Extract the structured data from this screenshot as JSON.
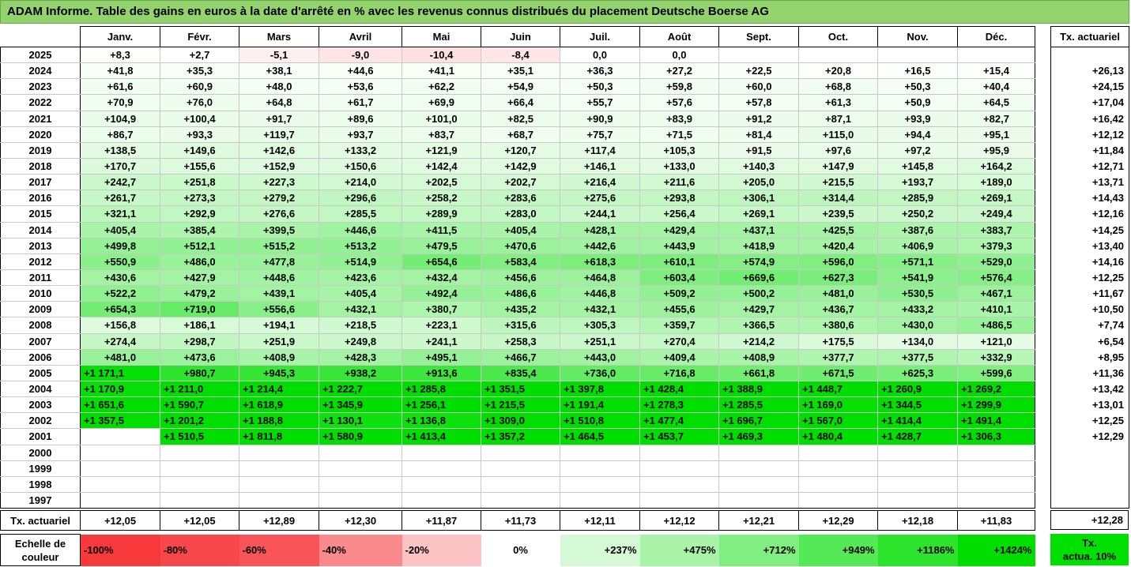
{
  "title": "ADAM Informe. Table des gains en euros à la date d'arrêté en % avec les revenus connus distribués du placement Deutsche Boerse AG",
  "months": [
    "Janv.",
    "Févr.",
    "Mars",
    "Avril",
    "Mai",
    "Juin",
    "Juil.",
    "Août",
    "Sept.",
    "Oct.",
    "Nov.",
    "Déc."
  ],
  "tx_header": "Tx. actuariel",
  "rows": [
    {
      "year": "2025",
      "values": [
        "+8,3",
        "+2,7",
        "-5,1",
        "-9,0",
        "-10,4",
        "-8,4",
        "0,0",
        "0,0",
        "",
        "",
        "",
        ""
      ],
      "tx": ""
    },
    {
      "year": "2024",
      "values": [
        "+41,8",
        "+35,3",
        "+38,1",
        "+44,6",
        "+41,1",
        "+35,1",
        "+36,3",
        "+27,2",
        "+22,5",
        "+20,8",
        "+16,5",
        "+15,4"
      ],
      "tx": "+26,13"
    },
    {
      "year": "2023",
      "values": [
        "+61,6",
        "+60,9",
        "+48,0",
        "+53,6",
        "+62,2",
        "+54,9",
        "+50,3",
        "+59,8",
        "+60,0",
        "+68,8",
        "+50,3",
        "+40,4"
      ],
      "tx": "+24,15"
    },
    {
      "year": "2022",
      "values": [
        "+70,9",
        "+76,0",
        "+64,8",
        "+61,7",
        "+69,9",
        "+66,4",
        "+55,7",
        "+57,6",
        "+57,8",
        "+61,3",
        "+50,9",
        "+64,5"
      ],
      "tx": "+17,04"
    },
    {
      "year": "2021",
      "values": [
        "+104,9",
        "+100,4",
        "+91,7",
        "+89,6",
        "+101,0",
        "+82,5",
        "+90,9",
        "+83,9",
        "+91,2",
        "+87,1",
        "+93,9",
        "+82,7"
      ],
      "tx": "+16,42"
    },
    {
      "year": "2020",
      "values": [
        "+86,7",
        "+93,3",
        "+119,7",
        "+93,7",
        "+83,7",
        "+68,7",
        "+75,7",
        "+71,5",
        "+81,4",
        "+115,0",
        "+94,4",
        "+95,1"
      ],
      "tx": "+12,12"
    },
    {
      "year": "2019",
      "values": [
        "+138,5",
        "+149,6",
        "+142,6",
        "+133,2",
        "+121,9",
        "+120,7",
        "+117,4",
        "+105,3",
        "+91,5",
        "+97,6",
        "+97,2",
        "+95,9"
      ],
      "tx": "+11,84"
    },
    {
      "year": "2018",
      "values": [
        "+170,7",
        "+155,6",
        "+152,9",
        "+150,6",
        "+142,4",
        "+142,9",
        "+146,1",
        "+133,0",
        "+140,3",
        "+147,9",
        "+145,8",
        "+164,2"
      ],
      "tx": "+12,71"
    },
    {
      "year": "2017",
      "values": [
        "+242,7",
        "+251,8",
        "+227,3",
        "+214,0",
        "+202,5",
        "+202,7",
        "+216,4",
        "+211,6",
        "+205,0",
        "+215,5",
        "+193,7",
        "+189,0"
      ],
      "tx": "+13,71"
    },
    {
      "year": "2016",
      "values": [
        "+261,7",
        "+273,3",
        "+279,2",
        "+296,6",
        "+258,2",
        "+283,6",
        "+275,6",
        "+293,8",
        "+306,1",
        "+314,4",
        "+285,9",
        "+269,1"
      ],
      "tx": "+14,43"
    },
    {
      "year": "2015",
      "values": [
        "+321,1",
        "+292,9",
        "+276,6",
        "+285,5",
        "+289,9",
        "+283,0",
        "+244,1",
        "+256,4",
        "+269,1",
        "+239,5",
        "+250,2",
        "+249,4"
      ],
      "tx": "+12,16"
    },
    {
      "year": "2014",
      "values": [
        "+405,4",
        "+385,4",
        "+399,5",
        "+446,6",
        "+411,5",
        "+405,4",
        "+428,1",
        "+429,4",
        "+437,1",
        "+425,5",
        "+387,6",
        "+383,7"
      ],
      "tx": "+14,25"
    },
    {
      "year": "2013",
      "values": [
        "+499,8",
        "+512,1",
        "+515,2",
        "+513,2",
        "+479,5",
        "+470,6",
        "+442,6",
        "+443,9",
        "+418,9",
        "+420,4",
        "+406,9",
        "+379,3"
      ],
      "tx": "+13,40"
    },
    {
      "year": "2012",
      "values": [
        "+550,9",
        "+486,0",
        "+477,8",
        "+514,9",
        "+654,6",
        "+583,4",
        "+618,3",
        "+610,1",
        "+574,9",
        "+596,0",
        "+571,1",
        "+529,0"
      ],
      "tx": "+14,16"
    },
    {
      "year": "2011",
      "values": [
        "+430,6",
        "+427,9",
        "+448,6",
        "+423,6",
        "+432,4",
        "+456,6",
        "+464,8",
        "+603,4",
        "+669,6",
        "+627,3",
        "+541,9",
        "+576,4"
      ],
      "tx": "+12,25"
    },
    {
      "year": "2010",
      "values": [
        "+522,2",
        "+479,2",
        "+439,1",
        "+405,4",
        "+492,4",
        "+486,6",
        "+446,8",
        "+509,2",
        "+500,2",
        "+481,0",
        "+530,5",
        "+467,1"
      ],
      "tx": "+11,67"
    },
    {
      "year": "2009",
      "values": [
        "+654,3",
        "+719,0",
        "+556,6",
        "+432,1",
        "+380,7",
        "+435,2",
        "+432,1",
        "+455,6",
        "+429,7",
        "+436,7",
        "+433,2",
        "+410,1"
      ],
      "tx": "+10,50"
    },
    {
      "year": "2008",
      "values": [
        "+156,8",
        "+186,1",
        "+194,1",
        "+218,5",
        "+223,1",
        "+315,6",
        "+305,3",
        "+359,7",
        "+366,5",
        "+380,6",
        "+430,0",
        "+486,5"
      ],
      "tx": "+7,74"
    },
    {
      "year": "2007",
      "values": [
        "+274,4",
        "+298,7",
        "+251,9",
        "+249,8",
        "+241,1",
        "+258,3",
        "+251,1",
        "+270,4",
        "+214,2",
        "+175,5",
        "+134,0",
        "+121,0"
      ],
      "tx": "+6,54"
    },
    {
      "year": "2006",
      "values": [
        "+481,0",
        "+473,6",
        "+408,9",
        "+428,3",
        "+495,1",
        "+466,7",
        "+443,0",
        "+409,4",
        "+408,9",
        "+377,7",
        "+377,5",
        "+332,9"
      ],
      "tx": "+8,95"
    },
    {
      "year": "2005",
      "values": [
        "+1 171,1",
        "+980,7",
        "+945,3",
        "+938,2",
        "+913,6",
        "+835,4",
        "+736,0",
        "+716,8",
        "+661,8",
        "+671,5",
        "+625,3",
        "+599,6"
      ],
      "tx": "+11,36"
    },
    {
      "year": "2004",
      "values": [
        "+1 170,9",
        "+1 211,0",
        "+1 214,4",
        "+1 222,7",
        "+1 285,8",
        "+1 351,5",
        "+1 397,8",
        "+1 428,4",
        "+1 388,9",
        "+1 448,7",
        "+1 260,9",
        "+1 269,2"
      ],
      "tx": "+13,42"
    },
    {
      "year": "2003",
      "values": [
        "+1 651,6",
        "+1 590,7",
        "+1 618,9",
        "+1 345,9",
        "+1 256,1",
        "+1 215,5",
        "+1 191,4",
        "+1 278,3",
        "+1 285,5",
        "+1 169,0",
        "+1 344,5",
        "+1 299,9"
      ],
      "tx": "+13,01"
    },
    {
      "year": "2002",
      "values": [
        "+1 357,5",
        "+1 201,2",
        "+1 188,8",
        "+1 130,1",
        "+1 136,8",
        "+1 309,0",
        "+1 510,8",
        "+1 477,4",
        "+1 696,7",
        "+1 567,0",
        "+1 414,4",
        "+1 491,4"
      ],
      "tx": "+12,25"
    },
    {
      "year": "2001",
      "values": [
        "",
        "+1 510,5",
        "+1 811,8",
        "+1 580,9",
        "+1 413,4",
        "+1 357,2",
        "+1 464,5",
        "+1 453,7",
        "+1 469,3",
        "+1 480,4",
        "+1 428,7",
        "+1 306,3"
      ],
      "tx": "+12,29"
    },
    {
      "year": "2000",
      "values": [
        "",
        "",
        "",
        "",
        "",
        "",
        "",
        "",
        "",
        "",
        "",
        ""
      ],
      "tx": ""
    },
    {
      "year": "1999",
      "values": [
        "",
        "",
        "",
        "",
        "",
        "",
        "",
        "",
        "",
        "",
        "",
        ""
      ],
      "tx": ""
    },
    {
      "year": "1998",
      "values": [
        "",
        "",
        "",
        "",
        "",
        "",
        "",
        "",
        "",
        "",
        "",
        ""
      ],
      "tx": ""
    },
    {
      "year": "1997",
      "values": [
        "",
        "",
        "",
        "",
        "",
        "",
        "",
        "",
        "",
        "",
        "",
        ""
      ],
      "tx": ""
    }
  ],
  "footer": {
    "label": "Tx. actuariel",
    "values": [
      "+12,05",
      "+12,05",
      "+12,89",
      "+12,30",
      "+11,87",
      "+11,73",
      "+12,11",
      "+12,12",
      "+12,21",
      "+12,29",
      "+12,18",
      "+11,83"
    ],
    "tx": "+12,28"
  },
  "scale": {
    "label": "Echelle de couleur",
    "items": [
      {
        "text": "-100%",
        "color": "#f8393c",
        "align": "left"
      },
      {
        "text": "-80%",
        "color": "#f8474a",
        "align": "left"
      },
      {
        "text": "-60%",
        "color": "#f95559",
        "align": "left"
      },
      {
        "text": "-40%",
        "color": "#fa8a8c",
        "align": "left"
      },
      {
        "text": "-20%",
        "color": "#fcc3c4",
        "align": "left"
      },
      {
        "text": "0%",
        "color": "#ffffff",
        "align": "center"
      },
      {
        "text": "+237%",
        "color": "#d5f9d5",
        "align": "right"
      },
      {
        "text": "+475%",
        "color": "#aaf4aa",
        "align": "right"
      },
      {
        "text": "+712%",
        "color": "#80ee80",
        "align": "right"
      },
      {
        "text": "+949%",
        "color": "#55e955",
        "align": "right"
      },
      {
        "text": "+1186%",
        "color": "#2be42b",
        "align": "right"
      },
      {
        "text": "+1424%",
        "color": "#00de00",
        "align": "right"
      }
    ],
    "tx_lines": [
      "Tx.",
      "actua. 10%"
    ]
  },
  "colors": {
    "title_bg": "#92d36e",
    "neg_stops": [
      "#ffffff",
      "#fcc3c4",
      "#fa8a8c",
      "#f95559",
      "#f8474a",
      "#f8393c"
    ],
    "pos_light": "#ffffff",
    "pos_full": "#00de00",
    "tx_green": "#00e000"
  }
}
